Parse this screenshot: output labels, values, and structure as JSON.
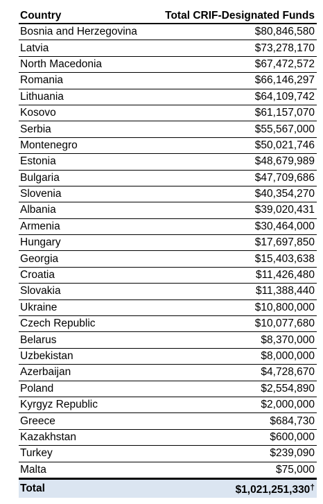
{
  "table": {
    "headers": {
      "country": "Country",
      "funds": "Total CRIF-Designated Funds"
    },
    "rows": [
      {
        "country": "Bosnia and Herzegovina",
        "funds": "$80,846,580"
      },
      {
        "country": "Latvia",
        "funds": "$73,278,170"
      },
      {
        "country": "North Macedonia",
        "funds": "$67,472,572"
      },
      {
        "country": "Romania",
        "funds": "$66,146,297"
      },
      {
        "country": "Lithuania",
        "funds": "$64,109,742"
      },
      {
        "country": "Kosovo",
        "funds": "$61,157,070"
      },
      {
        "country": "Serbia",
        "funds": "$55,567,000"
      },
      {
        "country": "Montenegro",
        "funds": "$50,021,746"
      },
      {
        "country": "Estonia",
        "funds": "$48,679,989"
      },
      {
        "country": "Bulgaria",
        "funds": "$47,709,686"
      },
      {
        "country": "Slovenia",
        "funds": "$40,354,270"
      },
      {
        "country": "Albania",
        "funds": "$39,020,431"
      },
      {
        "country": "Armenia",
        "funds": "$30,464,000"
      },
      {
        "country": "Hungary",
        "funds": "$17,697,850"
      },
      {
        "country": "Georgia",
        "funds": "$15,403,638"
      },
      {
        "country": "Croatia",
        "funds": "$11,426,480"
      },
      {
        "country": "Slovakia",
        "funds": "$11,388,440"
      },
      {
        "country": "Ukraine",
        "funds": "$10,800,000"
      },
      {
        "country": "Czech Republic",
        "funds": "$10,077,680"
      },
      {
        "country": "Belarus",
        "funds": "$8,370,000"
      },
      {
        "country": "Uzbekistan",
        "funds": "$8,000,000"
      },
      {
        "country": "Azerbaijan",
        "funds": "$4,728,670"
      },
      {
        "country": "Poland",
        "funds": "$2,554,890"
      },
      {
        "country": "Kyrgyz Republic",
        "funds": "$2,000,000"
      },
      {
        "country": "Greece",
        "funds": "$684,730"
      },
      {
        "country": "Kazakhstan",
        "funds": "$600,000"
      },
      {
        "country": "Turkey",
        "funds": "$239,090"
      },
      {
        "country": "Malta",
        "funds": "$75,000"
      }
    ],
    "total": {
      "label": "Total",
      "funds": "$1,021,251,330",
      "footnote_mark": "†"
    }
  }
}
